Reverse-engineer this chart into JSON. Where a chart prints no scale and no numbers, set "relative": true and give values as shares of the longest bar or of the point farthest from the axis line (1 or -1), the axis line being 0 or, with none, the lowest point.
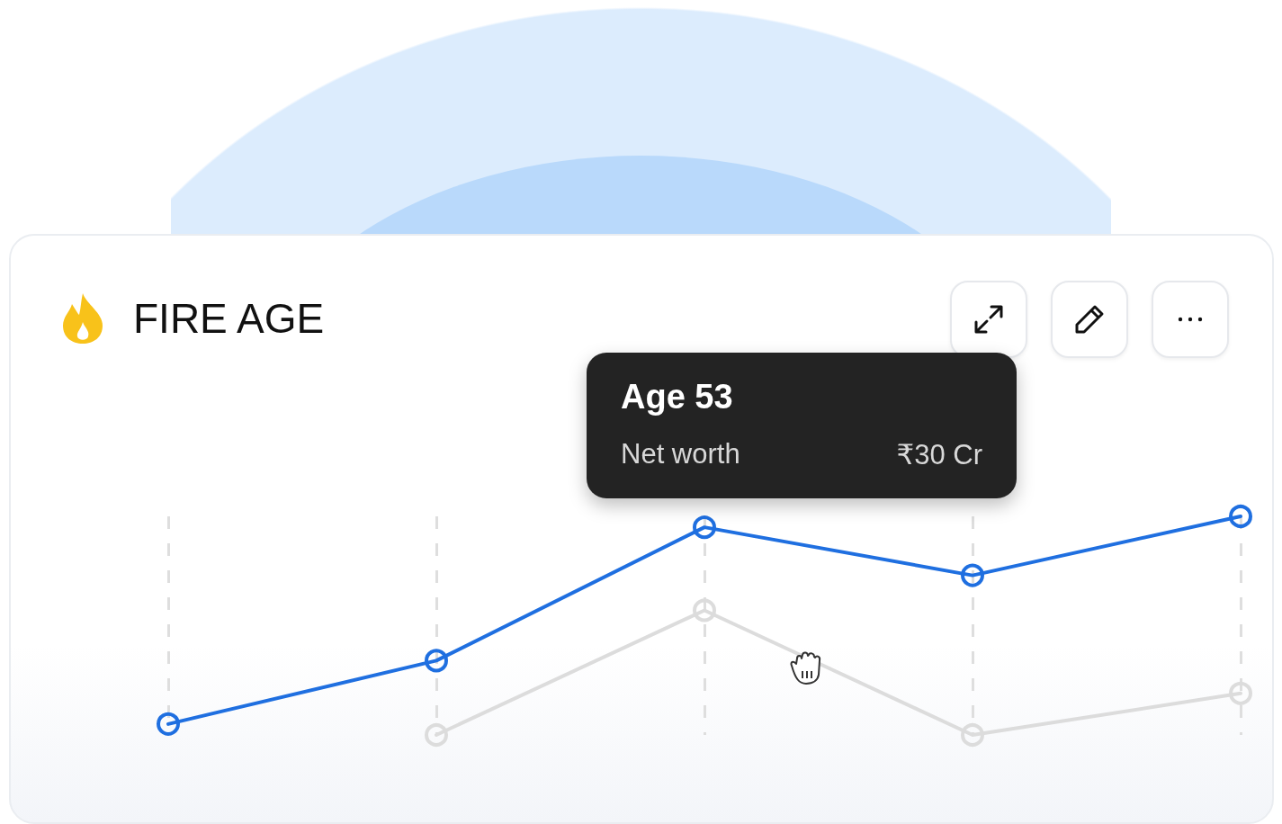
{
  "chart_data": {
    "type": "line",
    "title": "FIRE AGE",
    "relative": true,
    "categories": [
      null,
      null,
      null,
      null,
      null
    ],
    "series": [
      {
        "color": "#1f6fe0",
        "values": [
          0.05,
          0.34,
          0.95,
          0.73,
          1.0
        ]
      },
      {
        "color": "#dcdcdc",
        "values": [
          null,
          0,
          0.57,
          0,
          0.19
        ]
      }
    ],
    "grid": "x",
    "marker": "circle",
    "line_style": "solid",
    "annotations": [
      "Age 53",
      "Net worth",
      "₹30 Cr"
    ]
  }
}
